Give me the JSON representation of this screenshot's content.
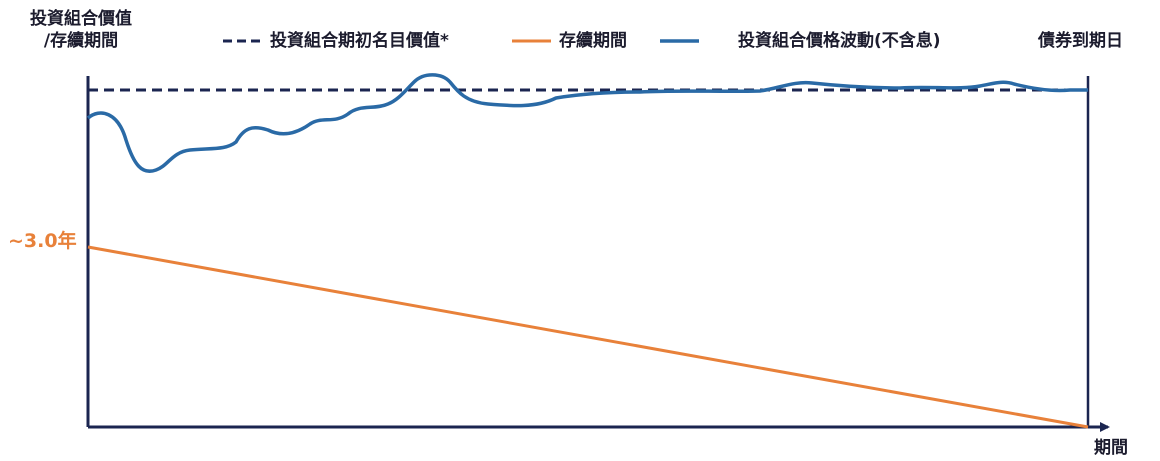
{
  "chart_data": {
    "type": "line",
    "ylabel": [
      "投資組合價值",
      "/存續期間"
    ],
    "xlabel": "期間",
    "end_marker_label": "債券到期日",
    "start_value_label": "~3.0年",
    "legend_position": "top",
    "grid": false,
    "series": [
      {
        "name": "投資組合期初名目價值*",
        "style": "dashed",
        "color": "#1b2550",
        "shape": "flat"
      },
      {
        "name": "存續期間",
        "style": "solid",
        "color": "#e8813a",
        "shape": "linear-decline",
        "values": [
          3.0,
          0
        ]
      },
      {
        "name": "投資組合價格波動(不含息)",
        "style": "solid",
        "color": "#2a6aa6",
        "shape": "fluctuating-convergence"
      }
    ]
  }
}
